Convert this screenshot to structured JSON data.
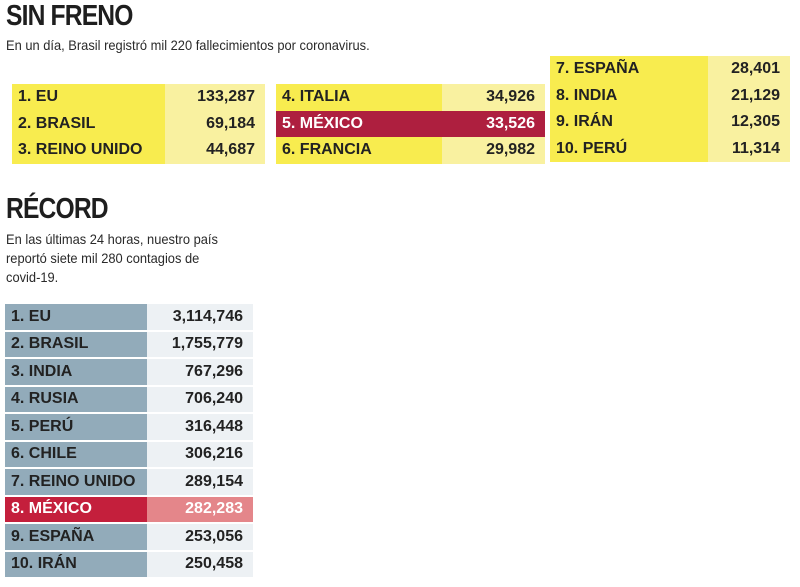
{
  "sin_freno": {
    "title": "SIN FRENO",
    "subtitle": "En un día, Brasil registró mil 220 fallecimientos por coronavirus.",
    "columns": [
      [
        {
          "label": "1. EU",
          "value": "133,287"
        },
        {
          "label": "2. BRASIL",
          "value": "69,184"
        },
        {
          "label": "3. REINO UNIDO",
          "value": "44,687"
        }
      ],
      [
        {
          "label": "4. ITALIA",
          "value": "34,926"
        },
        {
          "label": "5. MÉXICO",
          "value": "33,526",
          "highlight": true
        },
        {
          "label": "6. FRANCIA",
          "value": "29,982"
        }
      ],
      [
        {
          "label": "7. ESPAÑA",
          "value": "28,401"
        },
        {
          "label": "8. INDIA",
          "value": "21,129"
        },
        {
          "label": "9. IRÁN",
          "value": "12,305"
        },
        {
          "label": "10. PERÚ",
          "value": "11,314"
        }
      ]
    ]
  },
  "record": {
    "title": "RÉCORD",
    "subtitle_lines": [
      "En las últimas 24 horas, nuestro país",
      "reportó siete mil 280 contagios de",
      "covid-19."
    ],
    "rows": [
      {
        "label": "1.  EU",
        "value": "3,114,746"
      },
      {
        "label": "2.  BRASIL",
        "value": "1,755,779"
      },
      {
        "label": "3.  INDIA",
        "value": "767,296"
      },
      {
        "label": "4.  RUSIA",
        "value": "706,240"
      },
      {
        "label": "5.  PERÚ",
        "value": "316,448"
      },
      {
        "label": "6.  CHILE",
        "value": "306,216"
      },
      {
        "label": "7.  REINO UNIDO",
        "value": "289,154"
      },
      {
        "label": "8.  MÉXICO",
        "value": "282,283",
        "highlight": true
      },
      {
        "label": "9.  ESPAÑA",
        "value": "253,056"
      },
      {
        "label": "10. IRÁN",
        "value": "250,458"
      }
    ]
  }
}
